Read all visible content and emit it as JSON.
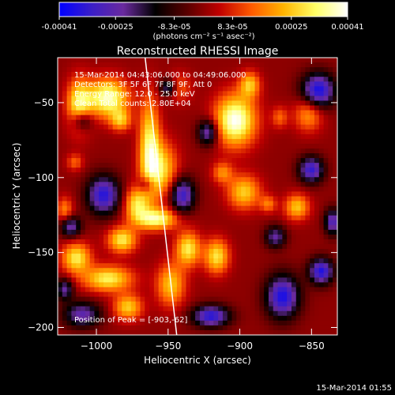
{
  "colorbar": {
    "tick_labels": [
      "-0.00041",
      "-0.00025",
      "-8.3e-05",
      "8.3e-05",
      "0.00025",
      "0.00041"
    ],
    "tick_values": [
      -0.00041,
      -0.00025,
      -8.3e-05,
      8.3e-05,
      0.00025,
      0.00041
    ],
    "range": [
      -0.00041,
      0.00041
    ],
    "unit_label": "(photons cm⁻² s⁻¹ asec⁻²)"
  },
  "chart_data": {
    "type": "heatmap",
    "title": "Reconstructed RHESSI Image",
    "xlabel": "Heliocentric X (arcsec)",
    "ylabel": "Heliocentric Y (arcsec)",
    "xlim": [
      -1027,
      -832
    ],
    "ylim": [
      -205,
      -20
    ],
    "x_ticks": [
      -1000,
      -950,
      -900,
      -850
    ],
    "x_tick_labels": [
      "−1000",
      "−950",
      "−900",
      "−850"
    ],
    "y_ticks": [
      -50,
      -100,
      -150,
      -200
    ],
    "y_tick_labels": [
      "−50",
      "−100",
      "−150",
      "−200"
    ],
    "color_range": [
      -0.00041,
      0.00041
    ],
    "colormap": [
      "#0000ff",
      "#3a1ec8",
      "#6a2a9e",
      "#000000",
      "#5a0000",
      "#c00000",
      "#ff5a00",
      "#ffb400",
      "#ffff66",
      "#ffffff"
    ],
    "annotations": [
      "15-Mar-2014 04:43:06.000 to 04:49:06.000",
      "Detectors: 3F 5F 6F 7F 8F 9F, Att 0",
      "Energy Range: 12.0 - 25.0 keV",
      "Clean     Total counts: 2.80E+04"
    ],
    "peak_label": "Position of Peak = [-903,-62]",
    "peak": [
      -903,
      -62
    ],
    "limb_line": [
      [
        -966,
        -20
      ],
      [
        -944,
        -205
      ]
    ],
    "sources": [
      {
        "x": -1012,
        "y": -52,
        "sx": 6,
        "sy": 12,
        "a": 0.00032
      },
      {
        "x": -992,
        "y": -47,
        "sx": 10,
        "sy": 9,
        "a": 0.00038
      },
      {
        "x": -983,
        "y": -62,
        "sx": 5,
        "sy": 5,
        "a": 0.00022
      },
      {
        "x": -963,
        "y": -78,
        "sx": 5,
        "sy": 22,
        "a": 0.0003
      },
      {
        "x": -955,
        "y": -95,
        "sx": 8,
        "sy": 13,
        "a": 0.00028
      },
      {
        "x": -972,
        "y": -118,
        "sx": 6,
        "sy": 8,
        "a": 0.00028
      },
      {
        "x": -958,
        "y": -128,
        "sx": 10,
        "sy": 5,
        "a": 0.00034
      },
      {
        "x": -982,
        "y": -142,
        "sx": 7,
        "sy": 6,
        "a": 0.0003
      },
      {
        "x": -1014,
        "y": -154,
        "sx": 7,
        "sy": 7,
        "a": 0.0003
      },
      {
        "x": -992,
        "y": -168,
        "sx": 12,
        "sy": 6,
        "a": 0.00031
      },
      {
        "x": -978,
        "y": -187,
        "sx": 7,
        "sy": 6,
        "a": 0.00026
      },
      {
        "x": -948,
        "y": -172,
        "sx": 7,
        "sy": 10,
        "a": 0.00025
      },
      {
        "x": -936,
        "y": -148,
        "sx": 6,
        "sy": 8,
        "a": 0.0003
      },
      {
        "x": -916,
        "y": -153,
        "sx": 6,
        "sy": 8,
        "a": 0.00029
      },
      {
        "x": -903,
        "y": -62,
        "sx": 10,
        "sy": 12,
        "a": 0.00041
      },
      {
        "x": -893,
        "y": -38,
        "sx": 5,
        "sy": 6,
        "a": 0.00024
      },
      {
        "x": -897,
        "y": -110,
        "sx": 8,
        "sy": 8,
        "a": 0.00026
      },
      {
        "x": -912,
        "y": -97,
        "sx": 5,
        "sy": 5,
        "a": 0.00018
      },
      {
        "x": -860,
        "y": -120,
        "sx": 6,
        "sy": 6,
        "a": 0.00025
      },
      {
        "x": -880,
        "y": -118,
        "sx": 4,
        "sy": 4,
        "a": 0.00016
      },
      {
        "x": -852,
        "y": -58,
        "sx": 7,
        "sy": 8,
        "a": 0.0002
      },
      {
        "x": -872,
        "y": -60,
        "sx": 4,
        "sy": 5,
        "a": 0.00014
      },
      {
        "x": -942,
        "y": -40,
        "sx": 6,
        "sy": 7,
        "a": 0.00013
      },
      {
        "x": -1022,
        "y": -122,
        "sx": 4,
        "sy": 6,
        "a": 0.00018
      },
      {
        "x": -1015,
        "y": -90,
        "sx": 4,
        "sy": 4,
        "a": 0.00014
      },
      {
        "x": -940,
        "y": -112,
        "sx": 6,
        "sy": 8,
        "a": -0.00033
      },
      {
        "x": -995,
        "y": -112,
        "sx": 8,
        "sy": 9,
        "a": -0.00035
      },
      {
        "x": -1018,
        "y": -133,
        "sx": 5,
        "sy": 5,
        "a": -0.00026
      },
      {
        "x": -1010,
        "y": -62,
        "sx": 5,
        "sy": 5,
        "a": -0.00025
      },
      {
        "x": -922,
        "y": -70,
        "sx": 5,
        "sy": 6,
        "a": -0.00028
      },
      {
        "x": -845,
        "y": -42,
        "sx": 8,
        "sy": 8,
        "a": -0.00038
      },
      {
        "x": -850,
        "y": -95,
        "sx": 6,
        "sy": 6,
        "a": -0.00033
      },
      {
        "x": -870,
        "y": -180,
        "sx": 8,
        "sy": 10,
        "a": -0.00037
      },
      {
        "x": -843,
        "y": -163,
        "sx": 6,
        "sy": 6,
        "a": -0.00036
      },
      {
        "x": -920,
        "y": -193,
        "sx": 9,
        "sy": 5,
        "a": -0.00035
      },
      {
        "x": -1010,
        "y": -192,
        "sx": 9,
        "sy": 6,
        "a": -0.00026
      },
      {
        "x": -950,
        "y": -40,
        "sx": 4,
        "sy": 4,
        "a": -0.00024
      },
      {
        "x": -875,
        "y": -140,
        "sx": 5,
        "sy": 5,
        "a": -0.00024
      },
      {
        "x": -835,
        "y": -130,
        "sx": 4,
        "sy": 6,
        "a": -0.00029
      },
      {
        "x": -1022,
        "y": -175,
        "sx": 4,
        "sy": 5,
        "a": -0.00024
      },
      {
        "x": -965,
        "y": -105,
        "sx": 4,
        "sy": 4,
        "a": -0.00018
      }
    ]
  },
  "footer": {
    "timestamp": "15-Mar-2014 01:55"
  }
}
